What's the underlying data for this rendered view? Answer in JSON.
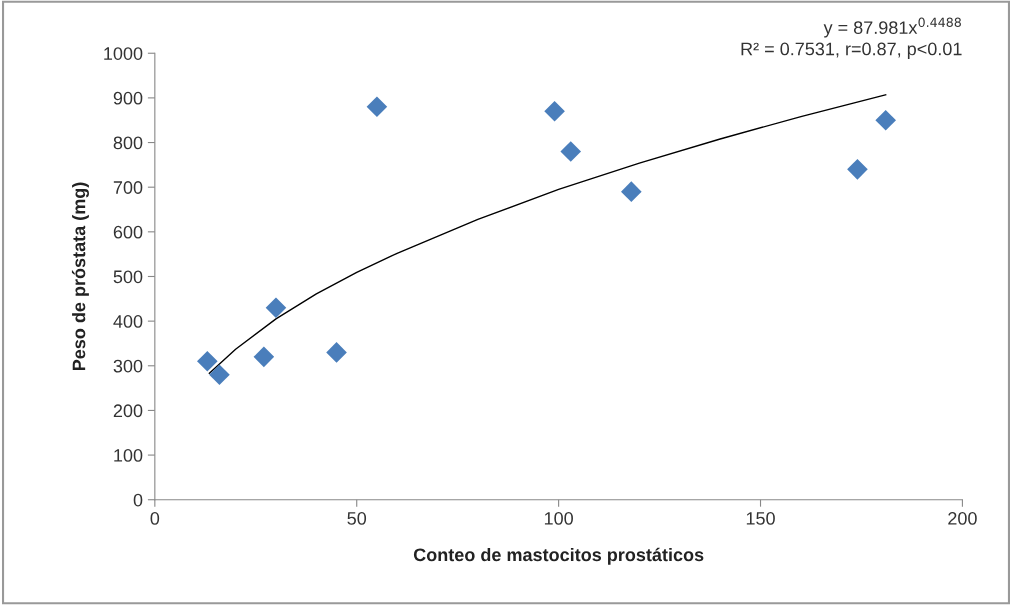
{
  "chart_data": {
    "type": "scatter",
    "xlabel": "Conteo de mastocitos prostáticos",
    "ylabel": "Peso de próstata (mg)",
    "xlim": [
      0,
      200
    ],
    "xticks": [
      0,
      50,
      100,
      150,
      200
    ],
    "ylim": [
      0,
      1000
    ],
    "yticks": [
      0,
      100,
      200,
      300,
      400,
      500,
      600,
      700,
      800,
      900,
      1000
    ],
    "grid": false,
    "legend": false,
    "marker": "diamond",
    "series": [
      {
        "color": "#4a7ebb",
        "x": [
          13,
          16,
          27,
          30,
          45,
          55,
          99,
          103,
          118,
          174,
          181
        ],
        "values": [
          310,
          280,
          320,
          430,
          330,
          880,
          870,
          780,
          690,
          740,
          850
        ]
      },
      {
        "type": "line",
        "color": "#000000",
        "marker": "none",
        "line_style": "solid",
        "x": [
          13.5,
          20,
          30,
          40,
          50,
          60,
          80,
          100,
          120,
          140,
          160,
          181
        ],
        "values": [
          283,
          337,
          405,
          461,
          509,
          552,
          628,
          695,
          754,
          808,
          858,
          907
        ]
      }
    ],
    "annotations": [
      "y = 87.981x$^{0.4488}$",
      "R² = 0.7531, r=0.87, p<0.01"
    ]
  }
}
